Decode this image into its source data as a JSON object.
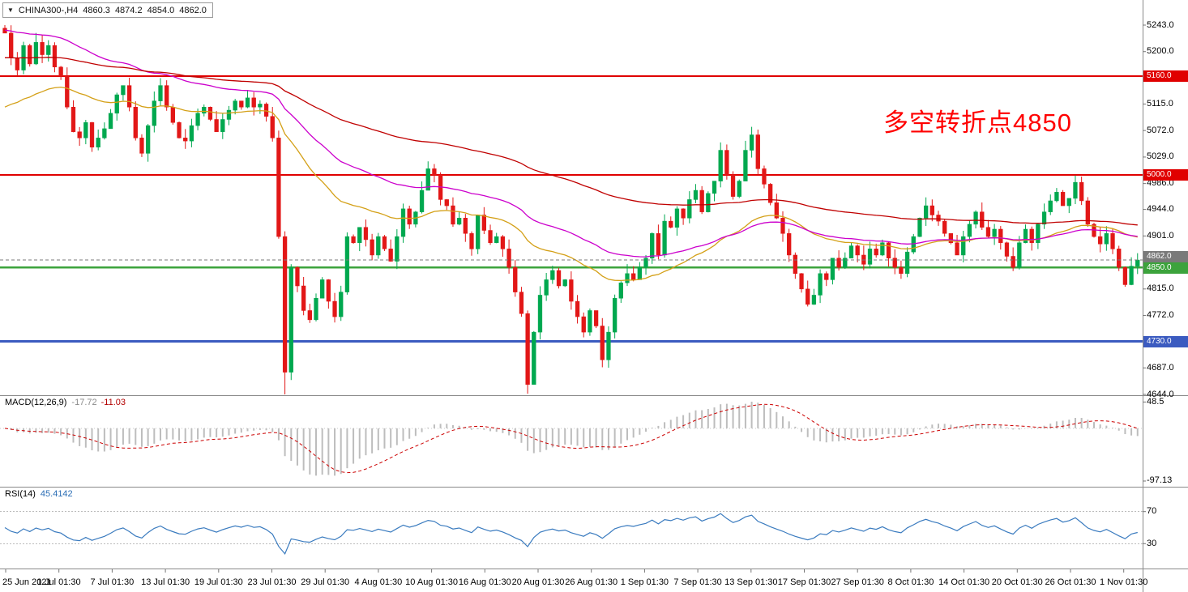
{
  "title_bar": {
    "collapse_icon": "▼",
    "symbol": "CHINA300-,H4",
    "open": "4860.3",
    "high": "4874.2",
    "low": "4854.0",
    "close": "4862.0"
  },
  "annotation": {
    "text": "多空转折点4850",
    "color": "#ff0000"
  },
  "chart_data": [
    {
      "type": "candlestick",
      "title": "CHINA300-,H4",
      "timeframe": "H4",
      "ylim": [
        4644.0,
        5243.0
      ],
      "y_ticks": [
        5243.0,
        5200.0,
        5115.0,
        5072.0,
        5029.0,
        4986.0,
        4944.0,
        4901.0,
        4815.0,
        4772.0,
        4687.0,
        4644.0
      ],
      "x_ticks": [
        "25 Jun 2021",
        "1 Jul 01:30",
        "7 Jul 01:30",
        "13 Jul 01:30",
        "19 Jul 01:30",
        "23 Jul 01:30",
        "29 Jul 01:30",
        "4 Aug 01:30",
        "10 Aug 01:30",
        "16 Aug 01:30",
        "20 Aug 01:30",
        "26 Aug 01:30",
        "1 Sep 01:30",
        "7 Sep 01:30",
        "13 Sep 01:30",
        "17 Sep 01:30",
        "27 Sep 01:30",
        "8 Oct 01:30",
        "14 Oct 01:30",
        "20 Oct 01:30",
        "26 Oct 01:30",
        "1 Nov 01:30"
      ],
      "up_color": "#00a84f",
      "down_color": "#e21717",
      "moving_average_colors": [
        "#d4a017",
        "#cc00cc",
        "#c00000"
      ],
      "horizontal_lines": [
        {
          "price": 5160.0,
          "label": "5160.0",
          "color": "#e00000",
          "width": 2
        },
        {
          "price": 5000.0,
          "label": "5000.0",
          "color": "#e00000",
          "width": 2
        },
        {
          "price": 4850.0,
          "label": "4850.0",
          "color": "#3ca33c",
          "width": 2.4
        },
        {
          "price": 4730.0,
          "label": "4730.0",
          "color": "#3b5bc0",
          "width": 2.6
        }
      ],
      "current_price_line": {
        "price": 4862.0,
        "label": "4862.0",
        "color": "#7a7a7a"
      },
      "closes": [
        5230,
        5190,
        5170,
        5210,
        5180,
        5215,
        5195,
        5210,
        5175,
        5160,
        5110,
        5070,
        5060,
        5085,
        5045,
        5060,
        5075,
        5100,
        5130,
        5145,
        5110,
        5060,
        5035,
        5080,
        5120,
        5145,
        5110,
        5085,
        5060,
        5055,
        5080,
        5100,
        5110,
        5090,
        5070,
        5090,
        5105,
        5120,
        5110,
        5125,
        5110,
        5115,
        5095,
        5060,
        4900,
        4680,
        4850,
        4820,
        4780,
        4765,
        4800,
        4830,
        4795,
        4770,
        4810,
        4900,
        4890,
        4915,
        4895,
        4870,
        4900,
        4880,
        4860,
        4900,
        4945,
        4920,
        4940,
        4975,
        5010,
        5000,
        4960,
        4950,
        4920,
        4930,
        4905,
        4880,
        4935,
        4910,
        4890,
        4900,
        4880,
        4850,
        4810,
        4775,
        4660,
        4745,
        4805,
        4830,
        4845,
        4820,
        4830,
        4795,
        4770,
        4745,
        4780,
        4755,
        4700,
        4745,
        4800,
        4825,
        4840,
        4830,
        4850,
        4865,
        4905,
        4870,
        4925,
        4915,
        4945,
        4930,
        4960,
        4975,
        4940,
        4970,
        4990,
        5040,
        5000,
        4965,
        4990,
        5040,
        5065,
        5010,
        4985,
        4955,
        4930,
        4905,
        4870,
        4840,
        4815,
        4790,
        4805,
        4840,
        4830,
        4865,
        4850,
        4865,
        4885,
        4870,
        4855,
        4880,
        4870,
        4890,
        4865,
        4850,
        4840,
        4875,
        4900,
        4930,
        4950,
        4935,
        4925,
        4905,
        4890,
        4870,
        4900,
        4920,
        4940,
        4915,
        4900,
        4912,
        4890,
        4868,
        4850,
        4890,
        4912,
        4890,
        4920,
        4940,
        4958,
        4972,
        4950,
        4962,
        4988,
        4958,
        4920,
        4900,
        4888,
        4905,
        4880,
        4850,
        4822,
        4852,
        4862
      ],
      "wick_overrides": {
        "0": {
          "high": 5243
        },
        "22": {
          "low": 5029
        },
        "45": {
          "low": 4644
        },
        "68": {
          "high": 5022
        },
        "84": {
          "low": 4645
        },
        "96": {
          "low": 4688
        },
        "120": {
          "high": 5078
        },
        "172": {
          "high": 4999
        }
      }
    },
    {
      "type": "histogram+line",
      "name": "MACD",
      "label": "MACD(12,26,9)",
      "values": [
        "-17.72",
        "-11.03"
      ],
      "y_ticks": [
        "48.5",
        "-97.13"
      ],
      "y_tick_values": [
        48.5,
        -97.13
      ],
      "histogram_color": "#bdbdbd",
      "signal_color": "#cc0000",
      "signal_style": "dashed"
    },
    {
      "type": "line",
      "name": "RSI",
      "label": "RSI(14)",
      "value": "45.4142",
      "levels": [
        70,
        30
      ],
      "yrange": [
        0,
        100
      ],
      "line_color": "#3a7bbf"
    }
  ]
}
